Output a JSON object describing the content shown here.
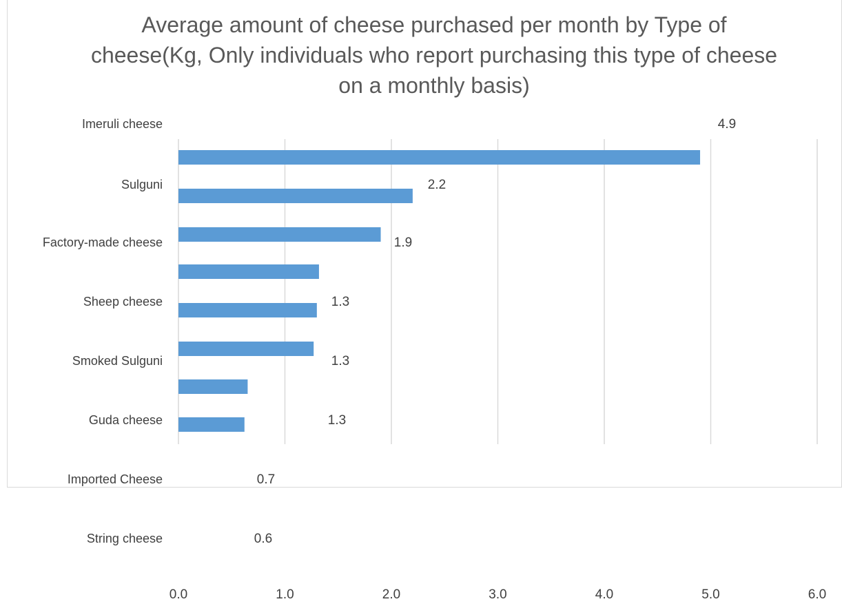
{
  "chart_data": {
    "type": "bar",
    "orientation": "horizontal",
    "title": "Average amount of cheese purchased per month  by Type of cheese(Kg, Only individuals  who report purchasing this type of cheese on a monthly  basis)",
    "categories": [
      "Imeruli cheese",
      "Sulguni",
      "Factory-made cheese",
      "Sheep cheese",
      "Smoked Sulguni",
      "Guda cheese",
      "Imported Cheese",
      "String cheese"
    ],
    "data_labels": [
      "4.9",
      "2.2",
      "1.9",
      "1.3",
      "1.3",
      "1.3",
      "0.7",
      "0.6"
    ],
    "values": [
      4.9,
      2.2,
      1.9,
      1.3,
      1.3,
      1.3,
      0.7,
      0.6
    ],
    "bar_values": [
      4.9,
      2.2,
      1.9,
      1.32,
      1.3,
      1.27,
      0.65,
      0.62
    ],
    "x_ticks": [
      "0.0",
      "1.0",
      "2.0",
      "3.0",
      "4.0",
      "5.0",
      "6.0"
    ],
    "xlim": [
      0,
      6
    ],
    "grid": true,
    "legend": "none",
    "bar_color": "#5b9bd5",
    "grid_color": "#d9d9d9",
    "text_color": "#404040"
  }
}
